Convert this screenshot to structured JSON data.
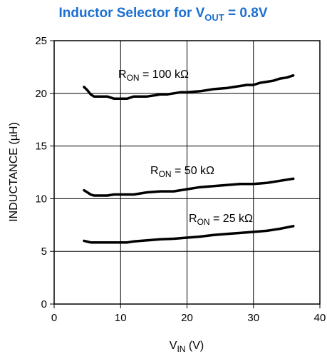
{
  "chart_data": {
    "type": "line",
    "title": {
      "prefix": "Inductor Selector for V",
      "sub": "OUT",
      "suffix": " = 0.8V",
      "color": "#1b6fd0"
    },
    "xlabel": {
      "main": "V",
      "sub": "IN",
      "rest": " (V)"
    },
    "ylabel": "INDUCTANCE (µH)",
    "xlim": [
      0,
      40
    ],
    "ylim": [
      0,
      25
    ],
    "x_ticks": [
      0,
      10,
      20,
      30,
      40
    ],
    "y_ticks": [
      0,
      5,
      10,
      15,
      20,
      25
    ],
    "grid": true,
    "series": [
      {
        "annotation": {
          "main": "R",
          "sub": "ON",
          "rest": " = 100 kΩ"
        },
        "points": [
          [
            4.5,
            20.6
          ],
          [
            5,
            20.3
          ],
          [
            5.5,
            19.9
          ],
          [
            6,
            19.7
          ],
          [
            7,
            19.7
          ],
          [
            8,
            19.7
          ],
          [
            9,
            19.5
          ],
          [
            10,
            19.5
          ],
          [
            11,
            19.5
          ],
          [
            12,
            19.7
          ],
          [
            13,
            19.7
          ],
          [
            14,
            19.7
          ],
          [
            15,
            19.8
          ],
          [
            16,
            19.9
          ],
          [
            17,
            19.9
          ],
          [
            18,
            20.0
          ],
          [
            19,
            20.1
          ],
          [
            20,
            20.1
          ],
          [
            22,
            20.2
          ],
          [
            24,
            20.4
          ],
          [
            26,
            20.5
          ],
          [
            27,
            20.6
          ],
          [
            28,
            20.7
          ],
          [
            29,
            20.8
          ],
          [
            30,
            20.8
          ],
          [
            31,
            21.0
          ],
          [
            32,
            21.1
          ],
          [
            33,
            21.2
          ],
          [
            34,
            21.4
          ],
          [
            35,
            21.5
          ],
          [
            36,
            21.7
          ]
        ]
      },
      {
        "annotation": {
          "main": "R",
          "sub": "ON",
          "rest": " = 50 kΩ"
        },
        "points": [
          [
            4.5,
            10.8
          ],
          [
            5,
            10.6
          ],
          [
            5.5,
            10.4
          ],
          [
            6,
            10.3
          ],
          [
            8,
            10.3
          ],
          [
            9,
            10.4
          ],
          [
            10,
            10.4
          ],
          [
            12,
            10.4
          ],
          [
            14,
            10.6
          ],
          [
            16,
            10.7
          ],
          [
            18,
            10.7
          ],
          [
            20,
            10.9
          ],
          [
            22,
            11.1
          ],
          [
            24,
            11.2
          ],
          [
            26,
            11.3
          ],
          [
            28,
            11.4
          ],
          [
            30,
            11.4
          ],
          [
            32,
            11.5
          ],
          [
            34,
            11.7
          ],
          [
            35,
            11.8
          ],
          [
            36,
            11.9
          ]
        ]
      },
      {
        "annotation": {
          "main": "R",
          "sub": "ON",
          "rest": " = 25 kΩ"
        },
        "points": [
          [
            4.5,
            6.0
          ],
          [
            5.5,
            5.85
          ],
          [
            7,
            5.85
          ],
          [
            9,
            5.85
          ],
          [
            11,
            5.85
          ],
          [
            12,
            5.95
          ],
          [
            14,
            6.05
          ],
          [
            16,
            6.15
          ],
          [
            18,
            6.2
          ],
          [
            20,
            6.3
          ],
          [
            22,
            6.4
          ],
          [
            24,
            6.55
          ],
          [
            26,
            6.65
          ],
          [
            28,
            6.75
          ],
          [
            30,
            6.85
          ],
          [
            32,
            6.95
          ],
          [
            34,
            7.15
          ],
          [
            36,
            7.4
          ]
        ]
      }
    ]
  }
}
